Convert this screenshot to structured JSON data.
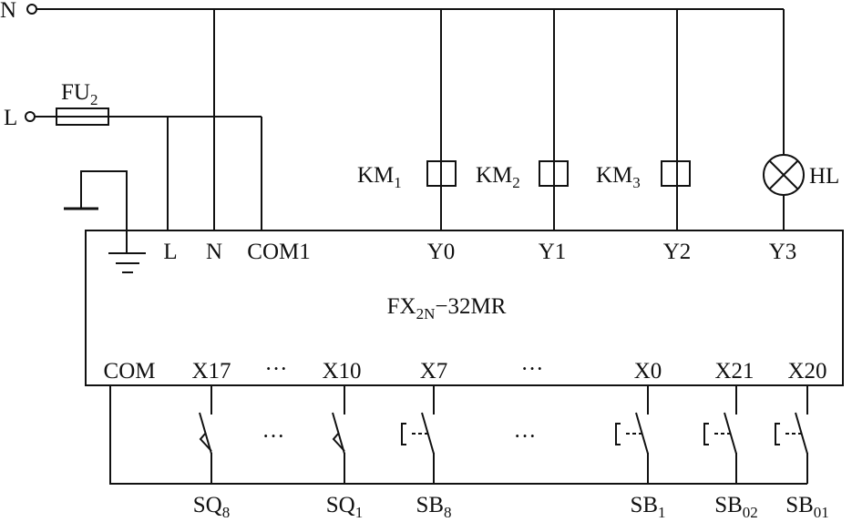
{
  "supply": {
    "neutral": {
      "label": "N"
    },
    "line": {
      "label": "L"
    },
    "fuse": {
      "label": "FU",
      "sub": "2"
    }
  },
  "plc": {
    "model": {
      "main": "FX",
      "sub": "2N",
      "rest": "−32MR"
    },
    "top_terminals": [
      "L",
      "N",
      "COM1",
      "Y0",
      "Y1",
      "Y2",
      "Y3"
    ],
    "bottom_terminals": [
      "COM",
      "X17",
      "···",
      "X10",
      "X7",
      "···",
      "X0",
      "X21",
      "X20"
    ]
  },
  "loads": [
    {
      "main": "KM",
      "sub": "1",
      "type": "coil"
    },
    {
      "main": "KM",
      "sub": "2",
      "type": "coil"
    },
    {
      "main": "KM",
      "sub": "3",
      "type": "coil"
    },
    {
      "main": "HL",
      "sub": "",
      "type": "lamp"
    }
  ],
  "inputs": [
    {
      "main": "SQ",
      "sub": "8",
      "type": "limit-switch"
    },
    {
      "main": "SQ",
      "sub": "1",
      "type": "limit-switch"
    },
    {
      "main": "SB",
      "sub": "8",
      "type": "pushbutton"
    },
    {
      "main": "SB",
      "sub": "1",
      "type": "pushbutton"
    },
    {
      "main": "SB",
      "sub": "02",
      "type": "pushbutton"
    },
    {
      "main": "SB",
      "sub": "01",
      "type": "pushbutton"
    }
  ],
  "ellipsis": "···"
}
